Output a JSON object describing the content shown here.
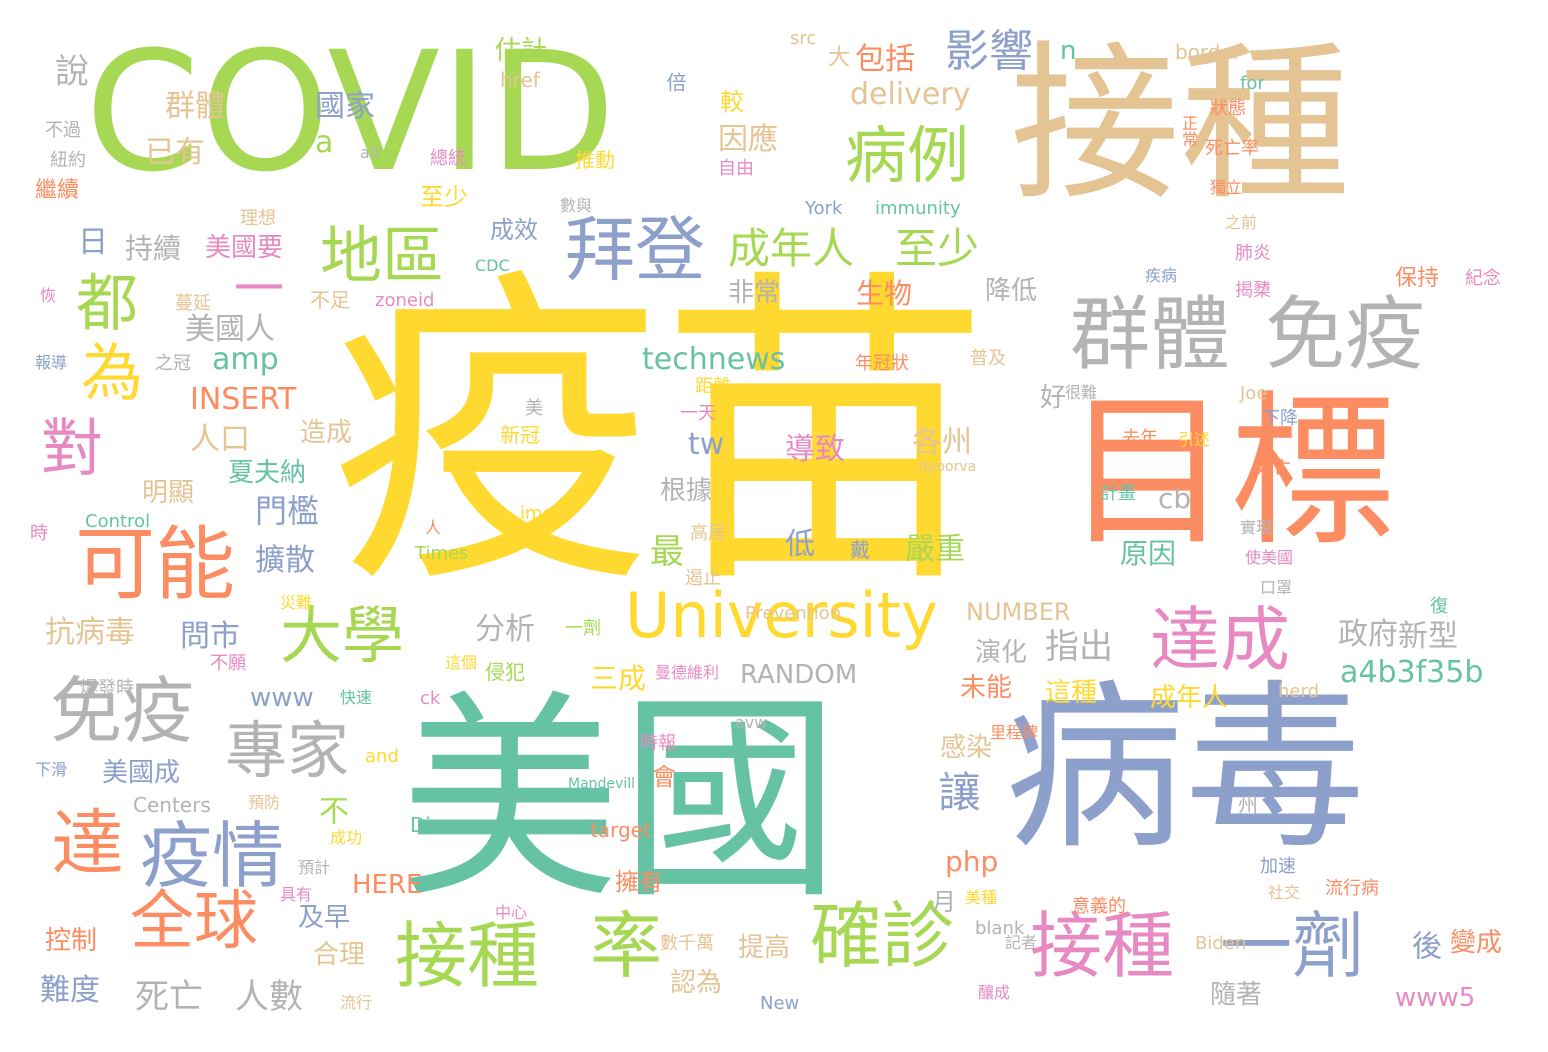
{
  "palette": {
    "yellow": "#ffd92f",
    "green": "#a6d854",
    "tan": "#e5c494",
    "orange": "#fc8d62",
    "blue": "#8da0cb",
    "teal": "#66c2a5",
    "pink": "#e78ac3",
    "gray": "#b3b3b3"
  },
  "words": [
    {
      "text": "疫苗",
      "color": "yellow"
    },
    {
      "text": "美國",
      "color": "teal"
    },
    {
      "text": "COVID",
      "color": "green"
    },
    {
      "text": "接種",
      "color": "tan"
    },
    {
      "text": "病毒",
      "color": "blue"
    },
    {
      "text": "目標",
      "color": "orange"
    },
    {
      "text": "群體",
      "color": "gray"
    },
    {
      "text": "免疫",
      "color": "gray"
    },
    {
      "text": "University",
      "color": "yellow"
    },
    {
      "text": "可能",
      "color": "orange"
    },
    {
      "text": "拜登",
      "color": "blue"
    },
    {
      "text": "地區",
      "color": "green"
    },
    {
      "text": "病例",
      "color": "green"
    },
    {
      "text": "免疫",
      "color": "gray"
    },
    {
      "text": "接種",
      "color": "green"
    },
    {
      "text": "接種",
      "color": "pink"
    },
    {
      "text": "一劑",
      "color": "blue"
    },
    {
      "text": "確診",
      "color": "green"
    },
    {
      "text": "率",
      "color": "green"
    },
    {
      "text": "疫情",
      "color": "blue"
    },
    {
      "text": "達成",
      "color": "pink"
    },
    {
      "text": "全球",
      "color": "orange"
    },
    {
      "text": "大學",
      "color": "green"
    },
    {
      "text": "專家",
      "color": "gray"
    },
    {
      "text": "成年人",
      "color": "green"
    },
    {
      "text": "至少",
      "color": "green"
    },
    {
      "text": "都",
      "color": "green"
    },
    {
      "text": "為",
      "color": "yellow"
    },
    {
      "text": "對",
      "color": "pink"
    },
    {
      "text": "達",
      "color": "orange"
    },
    {
      "text": "影響",
      "color": "blue"
    },
    {
      "text": "一",
      "color": "pink"
    },
    {
      "text": "美國人",
      "color": "gray"
    },
    {
      "text": "人口",
      "color": "tan"
    },
    {
      "text": "technews",
      "color": "teal"
    },
    {
      "text": "amp",
      "color": "teal"
    },
    {
      "text": "INSERT",
      "color": "orange"
    },
    {
      "text": "delivery",
      "color": "tan"
    },
    {
      "text": "國家",
      "color": "blue"
    },
    {
      "text": "a",
      "color": "green"
    },
    {
      "text": "群體",
      "color": "tan"
    },
    {
      "text": "已有",
      "color": "tan"
    },
    {
      "text": "說",
      "color": "gray"
    },
    {
      "text": "包括",
      "color": "orange"
    },
    {
      "text": "大",
      "color": "tan"
    },
    {
      "text": "估計",
      "color": "green"
    },
    {
      "text": "n",
      "color": "teal"
    },
    {
      "text": "src",
      "color": "tan"
    },
    {
      "text": "border",
      "color": "tan"
    },
    {
      "text": "href",
      "color": "tan"
    },
    {
      "text": "for",
      "color": "teal"
    },
    {
      "text": "狀態",
      "color": "orange"
    },
    {
      "text": "較",
      "color": "yellow"
    },
    {
      "text": "因應",
      "color": "tan"
    },
    {
      "text": "自由",
      "color": "pink"
    },
    {
      "text": "推動",
      "color": "yellow"
    },
    {
      "text": "紐約",
      "color": "gray"
    },
    {
      "text": "不過",
      "color": "gray"
    },
    {
      "text": "繼續",
      "color": "orange"
    },
    {
      "text": "alt",
      "color": "gray"
    },
    {
      "text": "總統",
      "color": "pink"
    },
    {
      "text": "正常",
      "color": "orange"
    },
    {
      "text": "死亡率",
      "color": "orange"
    },
    {
      "text": "獨立",
      "color": "orange"
    },
    {
      "text": "之前",
      "color": "tan"
    },
    {
      "text": "肺炎",
      "color": "pink"
    },
    {
      "text": "York",
      "color": "blue"
    },
    {
      "text": "immunity",
      "color": "teal"
    },
    {
      "text": "數與",
      "color": "gray"
    },
    {
      "text": "理想",
      "color": "tan"
    },
    {
      "text": "至少",
      "color": "yellow"
    },
    {
      "text": "成效",
      "color": "blue"
    },
    {
      "text": "持續",
      "color": "gray"
    },
    {
      "text": "美國要",
      "color": "pink"
    },
    {
      "text": "日",
      "color": "blue"
    },
    {
      "text": "CDC",
      "color": "teal"
    },
    {
      "text": "不足",
      "color": "tan"
    },
    {
      "text": "zoneid",
      "color": "pink"
    },
    {
      "text": "生物",
      "color": "orange"
    },
    {
      "text": "非常",
      "color": "gray"
    },
    {
      "text": "降低",
      "color": "gray"
    },
    {
      "text": "保持",
      "color": "orange"
    },
    {
      "text": "紀念",
      "color": "pink"
    },
    {
      "text": "疾病",
      "color": "blue"
    },
    {
      "text": "揭櫫",
      "color": "pink"
    },
    {
      "text": "蔓延",
      "color": "tan"
    },
    {
      "text": "恢",
      "color": "pink"
    },
    {
      "text": "報導",
      "color": "blue"
    },
    {
      "text": "之冠",
      "color": "gray"
    },
    {
      "text": "年冠狀",
      "color": "orange"
    },
    {
      "text": "普及",
      "color": "tan"
    },
    {
      "text": "很難",
      "color": "gray"
    },
    {
      "text": "距離",
      "color": "yellow"
    },
    {
      "text": "一天",
      "color": "pink"
    },
    {
      "text": "美",
      "color": "gray"
    },
    {
      "text": "新冠",
      "color": "yellow"
    },
    {
      "text": "Joe",
      "color": "tan"
    },
    {
      "text": "下降",
      "color": "blue"
    },
    {
      "text": "好",
      "color": "gray"
    },
    {
      "text": "造成",
      "color": "tan"
    },
    {
      "text": "夏夫納",
      "color": "teal"
    },
    {
      "text": "明顯",
      "color": "tan"
    },
    {
      "text": "各州",
      "color": "tan"
    },
    {
      "text": "導致",
      "color": "pink"
    },
    {
      "text": "tw",
      "color": "blue"
    },
    {
      "text": "cb",
      "color": "gray"
    },
    {
      "text": "去年",
      "color": "orange"
    },
    {
      "text": "引述",
      "color": "yellow"
    },
    {
      "text": "Apoorva",
      "color": "tan"
    },
    {
      "text": "計畫",
      "color": "teal"
    },
    {
      "text": "死亡",
      "color": "orange"
    },
    {
      "text": "根據",
      "color": "gray"
    },
    {
      "text": "門檻",
      "color": "blue"
    },
    {
      "text": "Control",
      "color": "teal"
    },
    {
      "text": "img",
      "color": "yellow"
    },
    {
      "text": "時",
      "color": "pink"
    },
    {
      "text": "人",
      "color": "orange"
    },
    {
      "text": "Times",
      "color": "green"
    },
    {
      "text": "低",
      "color": "blue"
    },
    {
      "text": "戴",
      "color": "blue"
    },
    {
      "text": "嚴重",
      "color": "green"
    },
    {
      "text": "原因",
      "color": "teal"
    },
    {
      "text": "高居",
      "color": "tan"
    },
    {
      "text": "遏止",
      "color": "tan"
    },
    {
      "text": "實現",
      "color": "gray"
    },
    {
      "text": "使美國",
      "color": "pink"
    },
    {
      "text": "口罩",
      "color": "gray"
    },
    {
      "text": "最",
      "color": "green"
    },
    {
      "text": "擴散",
      "color": "blue"
    },
    {
      "text": "災難",
      "color": "yellow"
    },
    {
      "text": "Prevention",
      "color": "tan"
    },
    {
      "text": "NUMBER",
      "color": "tan"
    },
    {
      "text": "復",
      "color": "teal"
    },
    {
      "text": "分析",
      "color": "gray"
    },
    {
      "text": "抗病毒",
      "color": "tan"
    },
    {
      "text": "問市",
      "color": "blue"
    },
    {
      "text": "不願",
      "color": "pink"
    },
    {
      "text": "一劑",
      "color": "green"
    },
    {
      "text": "這個",
      "color": "yellow"
    },
    {
      "text": "侵犯",
      "color": "green"
    },
    {
      "text": "曼德維利",
      "color": "pink"
    },
    {
      "text": "RANDOM",
      "color": "gray"
    },
    {
      "text": "演化",
      "color": "gray"
    },
    {
      "text": "指出",
      "color": "gray"
    },
    {
      "text": "政府",
      "color": "gray"
    },
    {
      "text": "新型",
      "color": "gray"
    },
    {
      "text": "a4b3f35b",
      "color": "teal"
    },
    {
      "text": "三成",
      "color": "yellow"
    },
    {
      "text": "www",
      "color": "blue"
    },
    {
      "text": "爆發時",
      "color": "gray"
    },
    {
      "text": "ck",
      "color": "pink"
    },
    {
      "text": "未能",
      "color": "orange"
    },
    {
      "text": "這種",
      "color": "yellow"
    },
    {
      "text": "成年人",
      "color": "yellow"
    },
    {
      "text": "herd",
      "color": "tan"
    },
    {
      "text": "快速",
      "color": "teal"
    },
    {
      "text": "avw",
      "color": "gray"
    },
    {
      "text": "時報",
      "color": "pink"
    },
    {
      "text": "里程碑",
      "color": "orange"
    },
    {
      "text": "下滑",
      "color": "blue"
    },
    {
      "text": "美國成",
      "color": "blue"
    },
    {
      "text": "and",
      "color": "yellow"
    },
    {
      "text": "感染",
      "color": "tan"
    },
    {
      "text": "會",
      "color": "orange"
    },
    {
      "text": "讓",
      "color": "blue"
    },
    {
      "text": "不",
      "color": "green"
    },
    {
      "text": "Centers",
      "color": "gray"
    },
    {
      "text": "預防",
      "color": "tan"
    },
    {
      "text": "Mandevill",
      "color": "teal"
    },
    {
      "text": "州",
      "color": "gray"
    },
    {
      "text": "Disease",
      "color": "teal"
    },
    {
      "text": "target",
      "color": "orange"
    },
    {
      "text": "成功",
      "color": "yellow"
    },
    {
      "text": "php",
      "color": "orange"
    },
    {
      "text": "預計",
      "color": "gray"
    },
    {
      "text": "HERE",
      "color": "orange"
    },
    {
      "text": "擁有",
      "color": "orange"
    },
    {
      "text": "加速",
      "color": "blue"
    },
    {
      "text": "社交",
      "color": "tan"
    },
    {
      "text": "流行病",
      "color": "orange"
    },
    {
      "text": "具有",
      "color": "pink"
    },
    {
      "text": "中心",
      "color": "pink"
    },
    {
      "text": "月",
      "color": "gray"
    },
    {
      "text": "美種",
      "color": "yellow"
    },
    {
      "text": "意義的",
      "color": "orange"
    },
    {
      "text": "及早",
      "color": "blue"
    },
    {
      "text": "控制",
      "color": "orange"
    },
    {
      "text": "合理",
      "color": "tan"
    },
    {
      "text": "數千萬",
      "color": "tan"
    },
    {
      "text": "提高",
      "color": "tan"
    },
    {
      "text": "blank",
      "color": "gray"
    },
    {
      "text": "記者",
      "color": "gray"
    },
    {
      "text": "Biden",
      "color": "tan"
    },
    {
      "text": "後",
      "color": "blue"
    },
    {
      "text": "變成",
      "color": "orange"
    },
    {
      "text": "難度",
      "color": "blue"
    },
    {
      "text": "死亡",
      "color": "gray"
    },
    {
      "text": "人數",
      "color": "gray"
    },
    {
      "text": "認為",
      "color": "tan"
    },
    {
      "text": "流行",
      "color": "tan"
    },
    {
      "text": "New",
      "color": "blue"
    },
    {
      "text": "釀成",
      "color": "pink"
    },
    {
      "text": "隨著",
      "color": "gray"
    },
    {
      "text": "www5",
      "color": "pink"
    },
    {
      "text": "倍",
      "color": "blue"
    }
  ]
}
